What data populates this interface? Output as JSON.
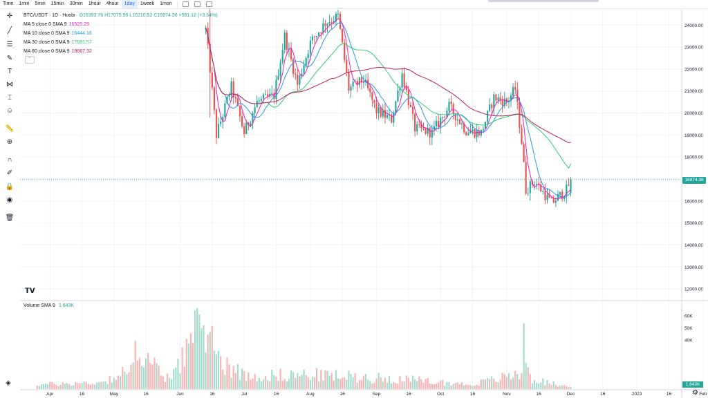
{
  "toolbar": {
    "timeframes": [
      "Time",
      "1min",
      "5min",
      "15min",
      "30min",
      "1hour",
      "4hour",
      "1day",
      "1week",
      "1mon"
    ],
    "active_timeframe": "1day"
  },
  "legend": {
    "symbol": "BTC/USDT · 1D · Huobi",
    "ohlc": "O16393.76 H17075.96 L16210.52 C16974.36 +581.12 (+3.54%)",
    "mas": [
      {
        "label": "MA 5 close 0 SMA 9",
        "value": "16520.29",
        "color": "#e91ebd"
      },
      {
        "label": "MA 10 close 0 SMA 9",
        "value": "16444.16",
        "color": "#2196f3"
      },
      {
        "label": "MA 30 close 0 SMA 9",
        "value": "17691.57",
        "color": "#2ecc71"
      },
      {
        "label": "MA 60 close 0 SMA 9",
        "value": "18667.32",
        "color": "#c2185b"
      }
    ]
  },
  "volume_legend": {
    "label": "Volume SMA 9",
    "value": "1.643K"
  },
  "last_price_label": "16974.36",
  "last_volume_label": "1.643K",
  "colors": {
    "up": "#26a69a",
    "down": "#ef5350",
    "up_vol": "#a5dccd",
    "down_vol": "#f8b4b4",
    "grid": "#f0f3fa"
  },
  "chart_data": {
    "type": "candlestick",
    "title": "BTC/USDT · 1D · Huobi",
    "price_axis": {
      "ticks": [
        12000,
        13000,
        14000,
        15000,
        16000,
        17000,
        18000,
        19000,
        20000,
        21000,
        22000,
        23000,
        24000
      ],
      "range": [
        11500,
        24700
      ]
    },
    "volume_axis": {
      "ticks": [
        "40K",
        "50K",
        "60K"
      ],
      "range": [
        0,
        65000
      ]
    },
    "x_axis": {
      "tick_labels": [
        "Apr",
        "16",
        "May",
        "16",
        "Jun",
        "16",
        "Jul",
        "16",
        "Aug",
        "16",
        "Sep",
        "16",
        "Oct",
        "16",
        "Nov",
        "16",
        "Dec",
        "16",
        "2023",
        "16",
        "Feb"
      ]
    },
    "price_anchors": {
      "x": [
        "2022-06-13",
        "2022-06-15",
        "2022-06-18",
        "2022-06-25",
        "2022-07-01",
        "2022-07-07",
        "2022-07-15",
        "2022-07-20",
        "2022-07-26",
        "2022-08-01",
        "2022-08-08",
        "2022-08-14",
        "2022-08-19",
        "2022-08-26",
        "2022-09-01",
        "2022-09-08",
        "2022-09-13",
        "2022-09-19",
        "2022-09-27",
        "2022-10-05",
        "2022-10-13",
        "2022-10-20",
        "2022-10-26",
        "2022-11-01",
        "2022-11-05",
        "2022-11-08",
        "2022-11-10",
        "2022-11-14",
        "2022-11-22",
        "2022-11-29",
        "2022-12-01"
      ],
      "y": [
        23800,
        22000,
        19000,
        21200,
        19100,
        20500,
        20800,
        23500,
        21300,
        23200,
        24100,
        24400,
        21100,
        21500,
        20100,
        19700,
        21800,
        19300,
        19100,
        20300,
        19200,
        19100,
        20700,
        20500,
        21100,
        18700,
        16500,
        16900,
        15900,
        16500,
        16974.36
      ]
    },
    "volume_anchors": {
      "x": [
        "2022-03-26",
        "2022-04-25",
        "2022-05-10",
        "2022-05-12",
        "2022-05-25",
        "2022-06-13",
        "2022-06-18",
        "2022-07-01",
        "2022-08-01",
        "2022-09-13",
        "2022-10-15",
        "2022-11-08",
        "2022-11-09",
        "2022-11-12",
        "2022-12-01"
      ],
      "y": [
        4000,
        6000,
        18000,
        43000,
        7000,
        62000,
        30000,
        12000,
        13000,
        9000,
        4000,
        14000,
        60000,
        9000,
        1643
      ]
    },
    "moving_averages": [
      {
        "name": "MA 5",
        "color": "#e91ebd",
        "last": 16520.29
      },
      {
        "name": "MA 10",
        "color": "#2196f3",
        "last": 16444.16
      },
      {
        "name": "MA 30",
        "color": "#2ecc71",
        "last": 17691.57
      },
      {
        "name": "MA 60",
        "color": "#c2185b",
        "last": 18667.32
      }
    ],
    "last": {
      "open": 16393.76,
      "high": 17075.96,
      "low": 16210.52,
      "close": 16974.36,
      "change": 581.12,
      "change_pct": 3.54
    }
  }
}
